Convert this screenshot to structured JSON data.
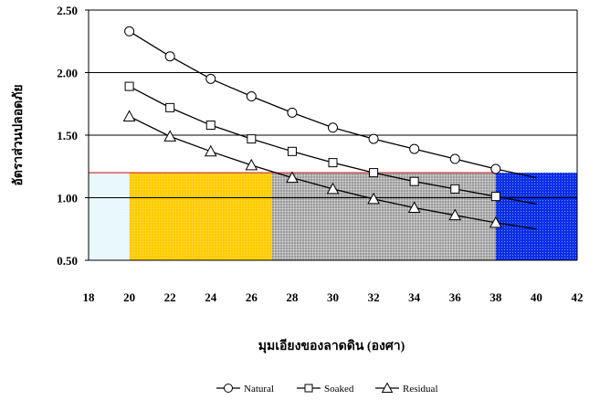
{
  "chart_data": {
    "type": "line",
    "title": "",
    "xlabel": "มุมเอียงของลาดดิน (องศา)",
    "ylabel": "อัตราส่วนปลอดภัย",
    "xlim": [
      18,
      42
    ],
    "ylim": [
      0.5,
      2.5
    ],
    "x_ticks": [
      "18",
      "20",
      "22",
      "24",
      "26",
      "28",
      "30",
      "32",
      "34",
      "36",
      "38",
      "40",
      "42"
    ],
    "y_ticks": [
      "0.50",
      "1.00",
      "1.50",
      "2.00",
      "2.50"
    ],
    "x": [
      20,
      22,
      24,
      26,
      28,
      30,
      32,
      34,
      36,
      38,
      40
    ],
    "series": [
      {
        "name": "Natural",
        "marker": "circle",
        "values": [
          2.33,
          2.13,
          1.95,
          1.81,
          1.68,
          1.56,
          1.47,
          1.39,
          1.31,
          1.23,
          1.16
        ]
      },
      {
        "name": "Soaked",
        "marker": "square",
        "values": [
          1.89,
          1.72,
          1.58,
          1.47,
          1.37,
          1.28,
          1.2,
          1.13,
          1.07,
          1.01,
          0.95
        ]
      },
      {
        "name": "Residual",
        "marker": "triangle",
        "values": [
          1.65,
          1.49,
          1.37,
          1.26,
          1.16,
          1.07,
          0.99,
          0.92,
          0.86,
          0.8,
          0.75
        ]
      }
    ],
    "threshold_line": {
      "y": 1.2,
      "color": "#d23a3a"
    },
    "zones": [
      {
        "x_from": 18,
        "x_to": 20,
        "color": "#e8f8fc",
        "pattern": "dots"
      },
      {
        "x_from": 20,
        "x_to": 27,
        "color": "#ffcc00",
        "pattern": "dots"
      },
      {
        "x_from": 27,
        "x_to": 38,
        "color": "#9a9a9a",
        "pattern": "grid"
      },
      {
        "x_from": 38,
        "x_to": 42,
        "color": "#0a2fe6",
        "pattern": "dots"
      }
    ],
    "grid": true,
    "legend": "bottom-center"
  }
}
